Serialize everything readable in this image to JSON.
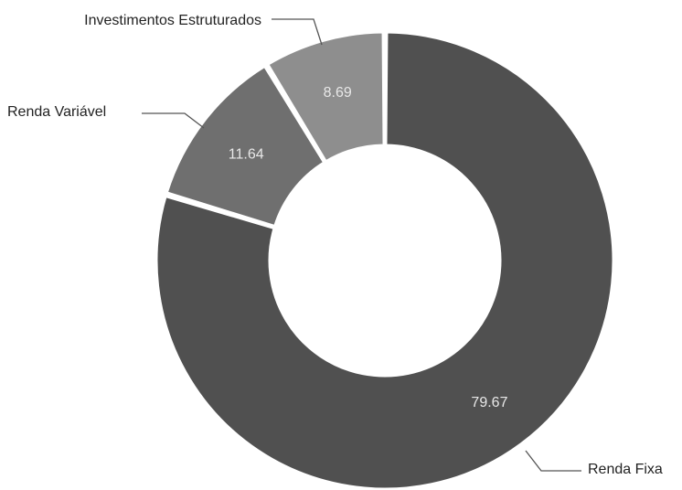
{
  "chart_data": {
    "type": "pie",
    "variant": "donut",
    "categories": [
      "Renda Fixa",
      "Renda Variável",
      "Investimentos Estruturados"
    ],
    "values": [
      79.67,
      11.64,
      8.69
    ],
    "value_labels": [
      "79.67",
      "11.64",
      "8.69"
    ],
    "colors": [
      "#505050",
      "#6f6f6f",
      "#8e8e8e"
    ],
    "label_color": "#222222",
    "value_label_color": "#e8e8e8",
    "legend": "none"
  }
}
